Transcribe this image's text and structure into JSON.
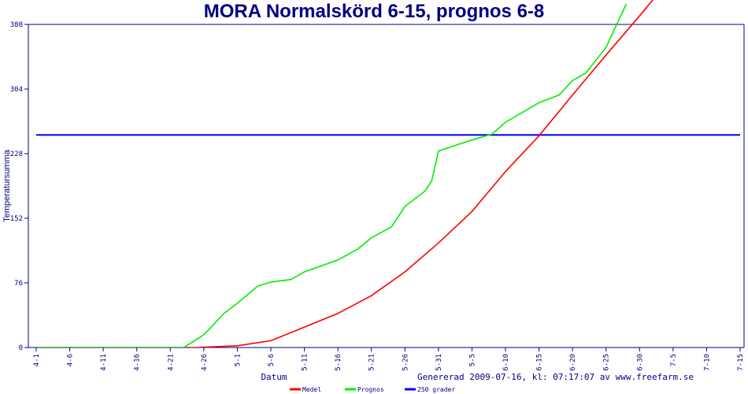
{
  "chart_data": {
    "type": "line",
    "title": "MORA Normalskörd 6-15, prognos 6-8",
    "xlabel": "Datum",
    "ylabel": "Temperatursumma",
    "footer": "Genererad 2009-07-16, kl: 07:17:07 av www.freefarm.se",
    "ylim": [
      0,
      380
    ],
    "yticks": [
      0,
      76,
      152,
      228,
      304,
      380
    ],
    "xticks": [
      "4-1",
      "4-6",
      "4-11",
      "4-16",
      "4-21",
      "4-26",
      "5-1",
      "5-6",
      "5-11",
      "5-16",
      "5-21",
      "5-26",
      "5-31",
      "5-5",
      "6-10",
      "6-15",
      "6-20",
      "6-25",
      "6-30",
      "7-5",
      "7-10",
      "7-15"
    ],
    "xrange": [
      "4-1",
      "7-15"
    ],
    "grid": false,
    "legend_position": "bottom",
    "series": [
      {
        "name": "Medel",
        "color": "#ff0000",
        "x": [
          "4-1",
          "4-25",
          "5-1",
          "5-6",
          "5-11",
          "5-16",
          "5-21",
          "5-26",
          "5-31",
          "6-5",
          "6-10",
          "6-15",
          "6-20",
          "6-25",
          "6-30",
          "7-2"
        ],
        "y": [
          0,
          0,
          2,
          8,
          24,
          40,
          61,
          89,
          123,
          160,
          207,
          249,
          297,
          344,
          390,
          409
        ]
      },
      {
        "name": "Prognos",
        "color": "#00ee00",
        "x": [
          "4-1",
          "4-23",
          "4-26",
          "4-29",
          "5-1",
          "5-4",
          "5-6",
          "5-9",
          "5-11",
          "5-16",
          "5-19",
          "5-21",
          "5-24",
          "5-26",
          "5-29",
          "5-30",
          "5-31",
          "6-3",
          "6-5",
          "6-8",
          "6-10",
          "6-15",
          "6-18",
          "6-20",
          "6-22",
          "6-25",
          "6-28"
        ],
        "y": [
          0,
          0,
          15,
          40,
          52,
          72,
          77,
          80,
          89,
          103,
          116,
          129,
          142,
          166,
          184,
          196,
          231,
          239,
          244,
          251,
          265,
          288,
          297,
          314,
          323,
          353,
          404
        ]
      },
      {
        "name": "250 grader",
        "color": "#0000ff",
        "x": [
          "4-1",
          "7-15"
        ],
        "y": [
          250,
          250
        ]
      }
    ]
  }
}
